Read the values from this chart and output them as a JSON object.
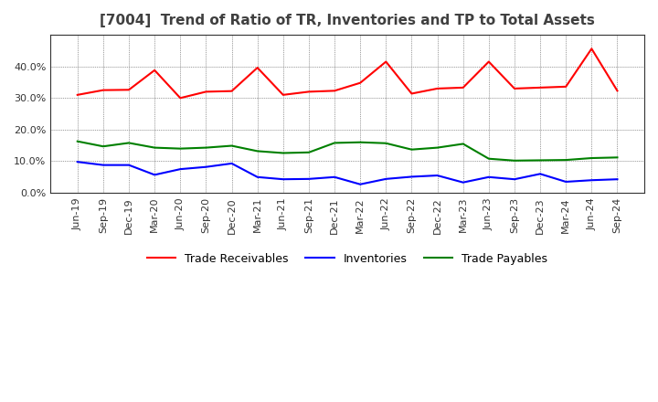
{
  "title": "[7004]  Trend of Ratio of TR, Inventories and TP to Total Assets",
  "x_labels": [
    "Jun-19",
    "Sep-19",
    "Dec-19",
    "Mar-20",
    "Jun-20",
    "Sep-20",
    "Dec-20",
    "Mar-21",
    "Jun-21",
    "Sep-21",
    "Dec-21",
    "Mar-22",
    "Jun-22",
    "Sep-22",
    "Dec-22",
    "Mar-23",
    "Jun-23",
    "Sep-23",
    "Dec-23",
    "Mar-24",
    "Jun-24",
    "Sep-24"
  ],
  "trade_receivables": [
    0.31,
    0.325,
    0.326,
    0.388,
    0.3,
    0.32,
    0.322,
    0.396,
    0.31,
    0.32,
    0.323,
    0.348,
    0.415,
    0.314,
    0.33,
    0.333,
    0.415,
    0.33,
    0.333,
    0.336,
    0.456,
    0.323
  ],
  "inventories": [
    0.098,
    0.088,
    0.088,
    0.057,
    0.075,
    0.082,
    0.093,
    0.05,
    0.043,
    0.044,
    0.05,
    0.027,
    0.044,
    0.051,
    0.055,
    0.033,
    0.05,
    0.043,
    0.06,
    0.035,
    0.04,
    0.043
  ],
  "trade_payables": [
    0.163,
    0.147,
    0.158,
    0.143,
    0.14,
    0.143,
    0.149,
    0.132,
    0.126,
    0.128,
    0.158,
    0.16,
    0.157,
    0.137,
    0.143,
    0.155,
    0.108,
    0.102,
    0.103,
    0.104,
    0.11,
    0.112
  ],
  "line_color_tr": "#FF0000",
  "line_color_inv": "#0000FF",
  "line_color_tp": "#008000",
  "background_color": "#FFFFFF",
  "grid_color": "#999999",
  "ylim": [
    0.0,
    0.5
  ],
  "yticks": [
    0.0,
    0.1,
    0.2,
    0.3,
    0.4
  ],
  "legend_labels": [
    "Trade Receivables",
    "Inventories",
    "Trade Payables"
  ],
  "title_color": "#404040",
  "title_fontsize": 11,
  "tick_fontsize": 8
}
